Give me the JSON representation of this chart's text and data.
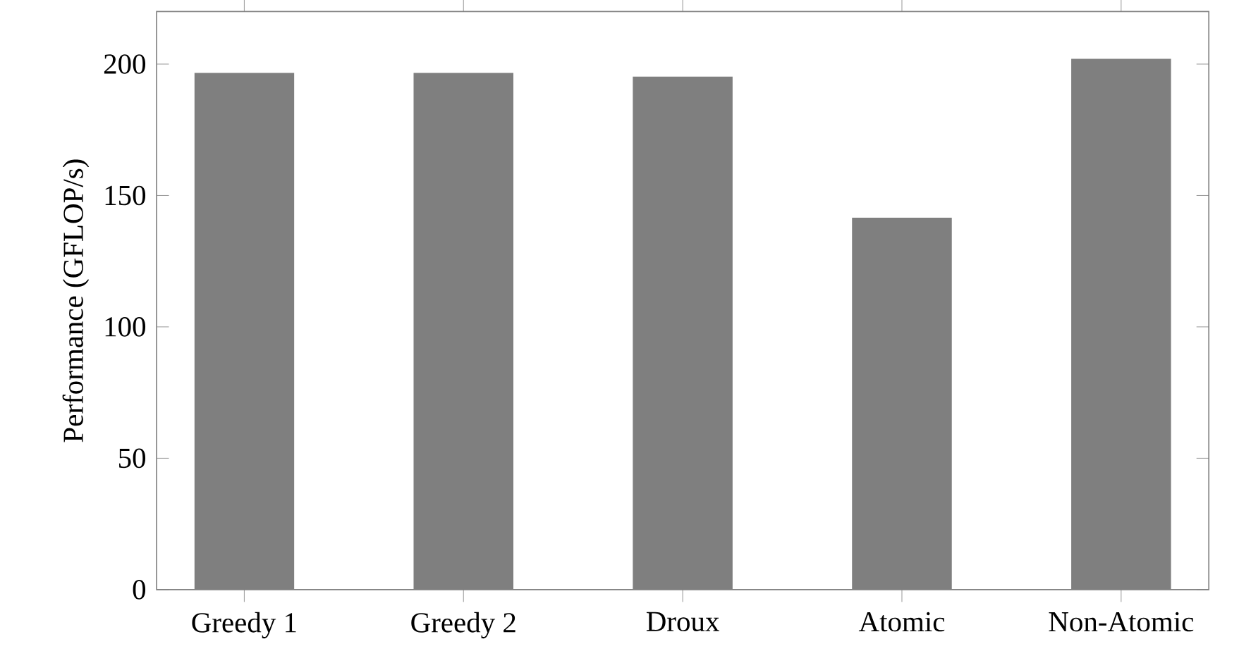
{
  "chart_data": {
    "type": "bar",
    "ylabel": "Performance (GFLOP/s)",
    "categories": [
      "Greedy 1",
      "Greedy 2",
      "Droux",
      "Atomic",
      "Non-Atomic"
    ],
    "values": [
      196.4,
      196.4,
      195,
      141.3,
      201.8
    ],
    "color": "#7f7f7f",
    "ylim": [
      0,
      220
    ],
    "yticks": [
      0,
      50,
      100,
      150,
      200
    ]
  }
}
